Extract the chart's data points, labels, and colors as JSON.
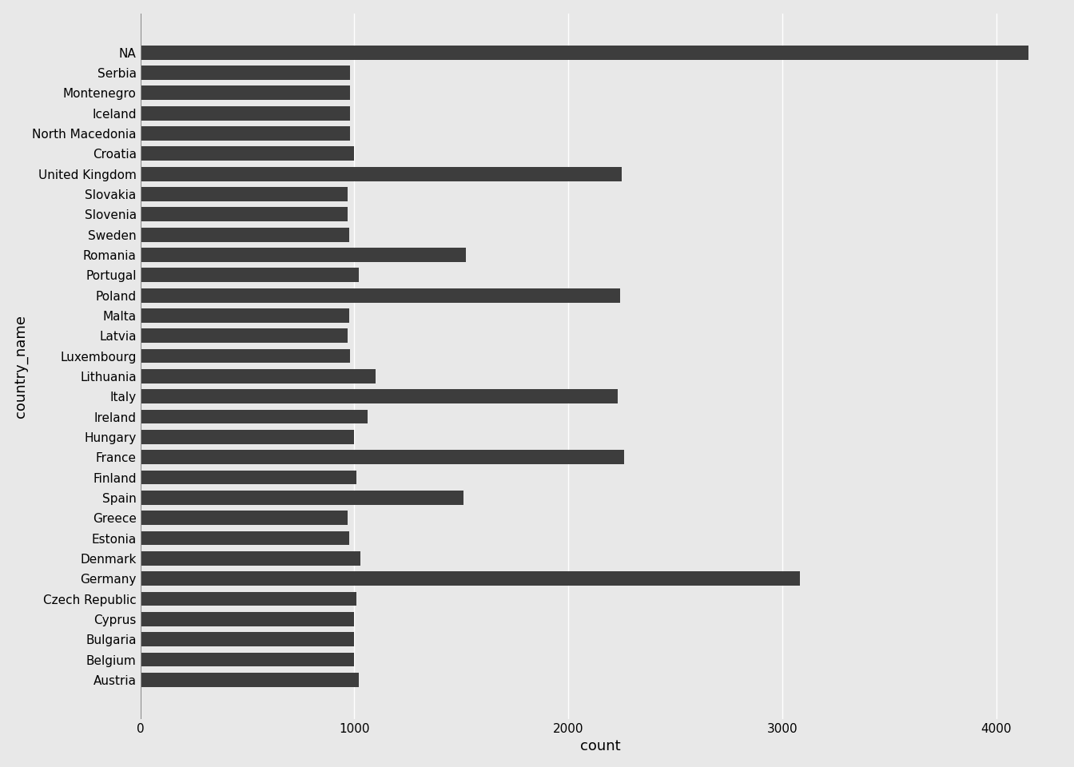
{
  "categories": [
    "NA",
    "Serbia",
    "Montenegro",
    "Iceland",
    "North Macedonia",
    "Croatia",
    "United Kingdom",
    "Slovakia",
    "Slovenia",
    "Sweden",
    "Romania",
    "Portugal",
    "Poland",
    "Malta",
    "Latvia",
    "Luxembourg",
    "Lithuania",
    "Italy",
    "Ireland",
    "Hungary",
    "France",
    "Finland",
    "Spain",
    "Greece",
    "Estonia",
    "Denmark",
    "Germany",
    "Czech Republic",
    "Cyprus",
    "Bulgaria",
    "Belgium",
    "Austria"
  ],
  "values": [
    4150,
    980,
    980,
    980,
    980,
    1000,
    2250,
    970,
    970,
    975,
    1520,
    1020,
    2240,
    975,
    970,
    980,
    1100,
    2230,
    1060,
    1000,
    2260,
    1010,
    1510,
    970,
    975,
    1030,
    3080,
    1010,
    1000,
    1000,
    1000,
    1020
  ],
  "bar_color": "#3d3d3d",
  "background_color": "#e8e8e8",
  "plot_background": "#e8e8e8",
  "xlabel": "count",
  "ylabel": "country_name",
  "xlim": [
    0,
    4300
  ],
  "grid_color": "#ffffff",
  "tick_label_fontsize": 11,
  "axis_label_fontsize": 13
}
